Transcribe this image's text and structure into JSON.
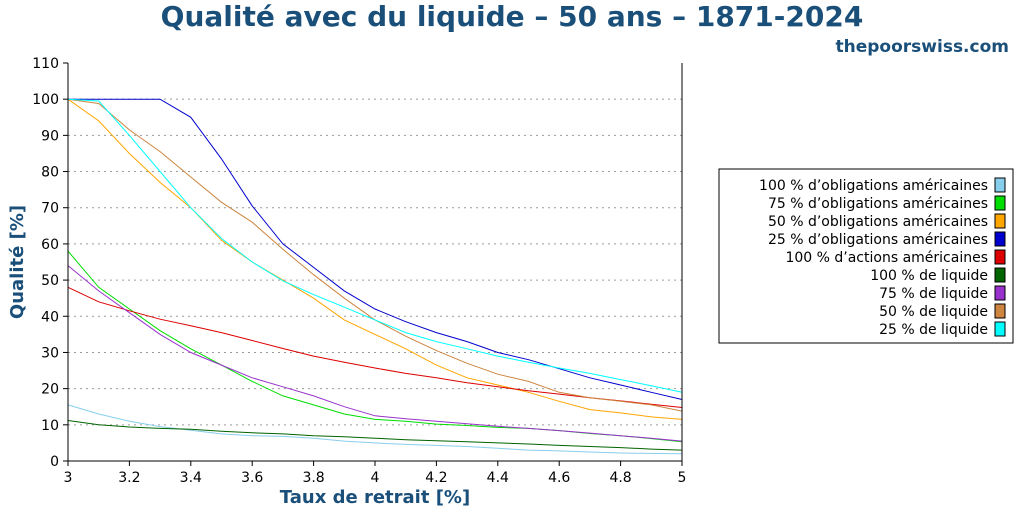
{
  "header": {
    "title": "Qualité avec du liquide – 50 ans – 1871-2024",
    "site": "thepoorswiss.com"
  },
  "chart_data": {
    "type": "line",
    "title": "Qualité avec du liquide – 50 ans – 1871-2024",
    "xlabel": "Taux de retrait [%]",
    "ylabel": "Qualité [%]",
    "xlim": [
      3,
      5
    ],
    "ylim": [
      0,
      110
    ],
    "xticks": [
      "3",
      "3.2",
      "3.4",
      "3.6",
      "3.8",
      "4",
      "4.2",
      "4.4",
      "4.6",
      "4.8",
      "5"
    ],
    "yticks": [
      "0",
      "10",
      "20",
      "30",
      "40",
      "50",
      "60",
      "70",
      "80",
      "90",
      "100",
      "110"
    ],
    "grid": "horizontal dotted",
    "legend_position": "right",
    "x": [
      3.0,
      3.1,
      3.2,
      3.3,
      3.4,
      3.5,
      3.6,
      3.7,
      3.8,
      3.9,
      4.0,
      4.1,
      4.2,
      4.3,
      4.4,
      4.5,
      4.6,
      4.7,
      4.8,
      4.9,
      5.0
    ],
    "series": [
      {
        "name": "100 % d’obligations américaines",
        "color": "#87ceeb",
        "values": [
          15.5,
          13.0,
          11.0,
          9.5,
          8.5,
          7.5,
          7.0,
          6.8,
          6.3,
          5.5,
          5.0,
          4.6,
          4.3,
          4.0,
          3.5,
          3.0,
          2.8,
          2.5,
          2.2,
          2.1,
          2.0
        ]
      },
      {
        "name": "75 % d’obligations américaines",
        "color": "#00dd00",
        "values": [
          58,
          48,
          42,
          36,
          31,
          26.5,
          22,
          18,
          15.5,
          13,
          11.5,
          11,
          10.2,
          9.8,
          9.3,
          9.0,
          8.4,
          7.6,
          7.0,
          6.2,
          5.3
        ]
      },
      {
        "name": "50 % d’obligations américaines",
        "color": "#ffa500",
        "values": [
          100,
          94,
          85,
          77,
          70,
          61,
          55,
          50,
          45,
          39,
          35,
          31,
          26.5,
          23,
          21,
          19,
          16.5,
          14.2,
          13.3,
          12.2,
          11.5
        ]
      },
      {
        "name": "25 % d’obligations américaines",
        "color": "#0000cc",
        "values": [
          100,
          100,
          100,
          100,
          95,
          83.5,
          70.5,
          60,
          53.5,
          47,
          42,
          38.5,
          35.5,
          33,
          30,
          28,
          25.5,
          23,
          21,
          19,
          17
        ]
      },
      {
        "name": "100 % d’actions américaines",
        "color": "#dd0000",
        "values": [
          48,
          44,
          41.5,
          39.2,
          37.4,
          35.5,
          33.3,
          31.1,
          29,
          27.3,
          25.7,
          24.2,
          23,
          21.6,
          20.5,
          19.4,
          18.5,
          17.5,
          16.6,
          15.7,
          14.8
        ]
      },
      {
        "name": "100 % de liquide",
        "color": "#006400",
        "values": [
          11.2,
          10,
          9.4,
          9.0,
          8.8,
          8.2,
          7.8,
          7.5,
          7.0,
          6.7,
          6.3,
          5.9,
          5.6,
          5.3,
          5.0,
          4.7,
          4.3,
          4.0,
          3.7,
          3.3,
          3.0
        ]
      },
      {
        "name": "75 % de liquide",
        "color": "#9932cc",
        "values": [
          54,
          47,
          41,
          35,
          30,
          26.5,
          23,
          20.5,
          18,
          15,
          12.5,
          11.7,
          11,
          10.3,
          9.6,
          9.0,
          8.4,
          7.7,
          7.0,
          6.3,
          5.5
        ]
      },
      {
        "name": "50 % de liquide",
        "color": "#cd853f",
        "values": [
          100,
          98.8,
          91.5,
          85.5,
          78.5,
          71.5,
          66,
          58.5,
          51.5,
          45,
          39,
          34.5,
          30.5,
          27,
          24,
          22,
          19,
          17.5,
          16.5,
          15.5,
          13.8
        ]
      },
      {
        "name": "25 % de liquide",
        "color": "#00ffff",
        "values": [
          100,
          99.5,
          90,
          80,
          70,
          61.5,
          55,
          49.8,
          46,
          42.5,
          39,
          35.5,
          33,
          31,
          29,
          27.3,
          25.7,
          24.2,
          22.5,
          20.8,
          19
        ]
      }
    ]
  }
}
